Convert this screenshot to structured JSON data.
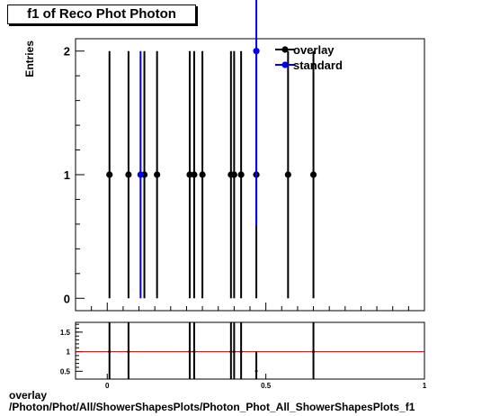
{
  "title": "f1 of Reco Phot Photon",
  "footer": {
    "line1": "overlay",
    "line2": "/Photon/Phot/All/ShowerShapesPlots/Photon_Phot_All_ShowerShapesPlots_f1"
  },
  "chart_data": [
    {
      "type": "scatter",
      "ylabel": "Entries",
      "xlim": [
        -0.1,
        1.0
      ],
      "ylim": [
        -0.1,
        2.1
      ],
      "yticks": [
        0,
        1,
        2
      ],
      "xticks": [
        0,
        0.5
      ],
      "legend_position": "top-right",
      "series": [
        {
          "name": "overlay",
          "color": "#000000",
          "x": [
            0.007,
            0.067,
            0.117,
            0.157,
            0.26,
            0.274,
            0.3,
            0.39,
            0.4,
            0.422,
            0.47,
            0.57,
            0.65
          ],
          "y": [
            1,
            1,
            1,
            1,
            1,
            1,
            1,
            1,
            1,
            1,
            1,
            1,
            1
          ],
          "yerr": [
            1,
            1,
            1,
            1,
            1,
            1,
            1,
            1,
            1,
            1,
            1,
            1,
            1
          ]
        },
        {
          "name": "standard",
          "color": "#0000ee",
          "x": [
            0.105,
            0.47
          ],
          "y": [
            1,
            2
          ],
          "yerr": [
            1,
            1.414
          ]
        }
      ]
    },
    {
      "type": "scatter",
      "xlim": [
        -0.1,
        1.0
      ],
      "ylim": [
        0.3,
        1.75
      ],
      "yticks": [
        0.5,
        1,
        1.5
      ],
      "ytick_labels": [
        "0.5",
        "1",
        "1.5"
      ],
      "xticks": [
        0,
        0.5,
        1
      ],
      "xtick_labels": [
        "0",
        "0.5",
        "1"
      ],
      "reference_line": 1,
      "reference_color": "#c00000",
      "series": [
        {
          "name": "",
          "color": "#000000",
          "x": [
            0.007,
            0.067,
            0.26,
            0.274,
            0.39,
            0.4,
            0.422,
            0.47,
            0.65
          ],
          "y": [
            1,
            1,
            1,
            1,
            1,
            1,
            1,
            0.5,
            1
          ],
          "yerr": [
            1,
            1,
            1,
            1,
            1,
            1,
            1,
            0.5,
            1
          ]
        }
      ]
    }
  ]
}
